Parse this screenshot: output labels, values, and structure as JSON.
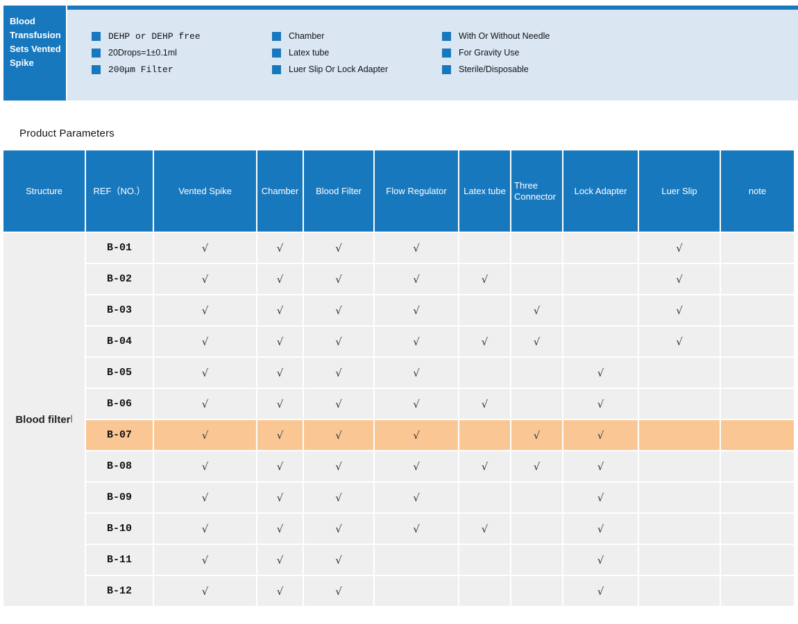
{
  "colors": {
    "primary_blue": "#1878BE",
    "panel_blue": "#DAE7F3",
    "row_gray": "#EFEFEF",
    "highlight_orange": "#FAC794",
    "check_color": "#333333"
  },
  "banner": {
    "title": "Blood Transfusion Sets Vented Spike",
    "feature_columns": [
      [
        {
          "text": "DEHP or DEHP free",
          "mono": true
        },
        {
          "text": "20Drops=1±0.1ml",
          "mono": false
        },
        {
          "text": "200μm Filter",
          "mono": true
        }
      ],
      [
        {
          "text": "Chamber",
          "mono": false
        },
        {
          "text": "Latex tube",
          "mono": false
        },
        {
          "text": "Luer Slip Or Lock Adapter",
          "mono": false
        }
      ],
      [
        {
          "text": "With Or Without Needle",
          "mono": false
        },
        {
          "text": "For Gravity Use",
          "mono": false
        },
        {
          "text": "Sterile/Disposable",
          "mono": false
        }
      ]
    ]
  },
  "section_title": "Product Parameters",
  "table": {
    "columns": [
      {
        "key": "structure",
        "label": "Structure"
      },
      {
        "key": "ref",
        "label": "REF（NO.）"
      },
      {
        "key": "vented_spike",
        "label": "Vented Spike"
      },
      {
        "key": "chamber",
        "label": "Chamber"
      },
      {
        "key": "blood_filter",
        "label": "Blood Filter"
      },
      {
        "key": "flow_regulator",
        "label": "Flow Regulator"
      },
      {
        "key": "latex_tube",
        "label": "Latex tube"
      },
      {
        "key": "three_connector",
        "label": "Three Connector"
      },
      {
        "key": "lock_adapter",
        "label": "Lock Adapter"
      },
      {
        "key": "luer_slip",
        "label": "Luer Slip"
      },
      {
        "key": "note",
        "label": "note"
      }
    ],
    "check_glyph": "√",
    "structure_group": {
      "label": "Blood filter",
      "cursor": "|"
    },
    "rows": [
      {
        "ref": "B-01",
        "checks": [
          1,
          1,
          1,
          1,
          0,
          0,
          0,
          1
        ],
        "note": "",
        "highlighted": false
      },
      {
        "ref": "B-02",
        "checks": [
          1,
          1,
          1,
          1,
          1,
          0,
          0,
          1
        ],
        "note": "",
        "highlighted": false
      },
      {
        "ref": "B-03",
        "checks": [
          1,
          1,
          1,
          1,
          0,
          1,
          0,
          1
        ],
        "note": "",
        "highlighted": false
      },
      {
        "ref": "B-04",
        "checks": [
          1,
          1,
          1,
          1,
          1,
          1,
          0,
          1
        ],
        "note": "",
        "highlighted": false
      },
      {
        "ref": "B-05",
        "checks": [
          1,
          1,
          1,
          1,
          0,
          0,
          1,
          0
        ],
        "note": "",
        "highlighted": false
      },
      {
        "ref": "B-06",
        "checks": [
          1,
          1,
          1,
          1,
          1,
          0,
          1,
          0
        ],
        "note": "",
        "highlighted": false
      },
      {
        "ref": "B-07",
        "checks": [
          1,
          1,
          1,
          1,
          0,
          1,
          1,
          0
        ],
        "note": "",
        "highlighted": true
      },
      {
        "ref": "B-08",
        "checks": [
          1,
          1,
          1,
          1,
          1,
          1,
          1,
          0
        ],
        "note": "",
        "highlighted": false
      },
      {
        "ref": "B-09",
        "checks": [
          1,
          1,
          1,
          1,
          0,
          0,
          1,
          0
        ],
        "note": "",
        "highlighted": false
      },
      {
        "ref": "B-10",
        "checks": [
          1,
          1,
          1,
          1,
          1,
          0,
          1,
          0
        ],
        "note": "",
        "highlighted": false
      },
      {
        "ref": "B-11",
        "checks": [
          1,
          1,
          1,
          0,
          0,
          0,
          1,
          0
        ],
        "note": "",
        "highlighted": false
      },
      {
        "ref": "B-12",
        "checks": [
          1,
          1,
          1,
          0,
          0,
          0,
          1,
          0
        ],
        "note": "",
        "highlighted": false
      }
    ]
  }
}
